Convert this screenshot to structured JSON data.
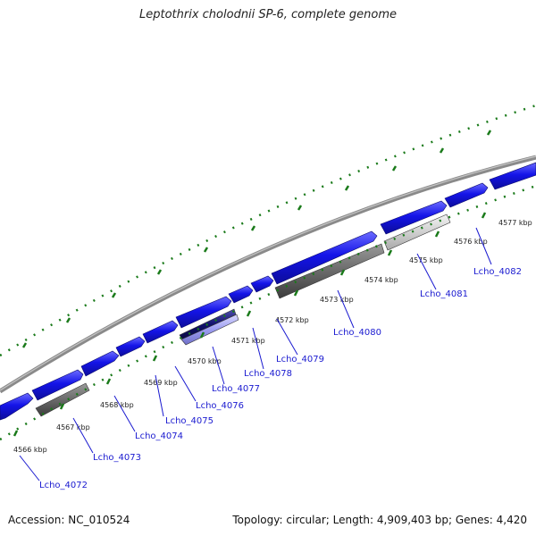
{
  "title": "Leptothrix cholodnii SP-6, complete genome",
  "footer": {
    "accession": "Accession: NC_010524",
    "topology": "Topology: circular; Length: 4,909,403 bp; Genes: 4,420"
  },
  "colors": {
    "forward_gene": "#1414e8",
    "backbone": "#8a8a8a",
    "tick": "#1a7a1a",
    "label": "#1a1ad0"
  },
  "scale_labels": [
    "4566 kbp",
    "4567 kbp",
    "4568 kbp",
    "4569 kbp",
    "4570 kbp",
    "4571 kbp",
    "4572 kbp",
    "4573 kbp",
    "4574 kbp",
    "4575 kbp",
    "4576 kbp",
    "4577 kbp"
  ],
  "gene_labels": [
    "Lcho_4072",
    "Lcho_4073",
    "Lcho_4074",
    "Lcho_4075",
    "Lcho_4076",
    "Lcho_4077",
    "Lcho_4078",
    "Lcho_4079",
    "Lcho_4080",
    "Lcho_4081",
    "Lcho_4082"
  ]
}
